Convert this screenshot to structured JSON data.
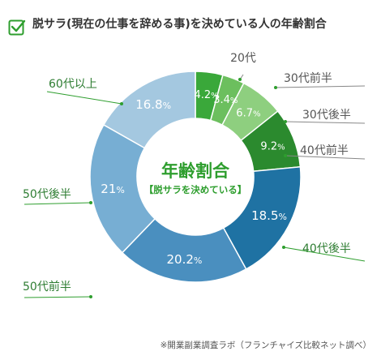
{
  "header": {
    "title": "脱サラ(現在の仕事を辞める事)を決めている人の年齢割合"
  },
  "center": {
    "title": "年齢割合",
    "subtitle": "【脱サラを決めている】"
  },
  "footnote": "※開業副業調査ラボ（フランチャイズ比較ネット調べ）",
  "colors": {
    "accent_green": "#2e9e2e",
    "dark_blue": "#1f6e9e",
    "leader_gray": "#888888"
  },
  "chart_data": {
    "type": "pie",
    "title": "年齢割合",
    "unit": "%",
    "slices": [
      {
        "label": "20代",
        "value": 4.2,
        "color": "#3aa83a"
      },
      {
        "label": "30代前半",
        "value": 3.4,
        "color": "#6cbf5e"
      },
      {
        "label": "30代後半",
        "value": 6.7,
        "color": "#8ecf7f"
      },
      {
        "label": "40代前半",
        "value": 9.2,
        "color": "#2b8a2e"
      },
      {
        "label": "40代後半",
        "value": 18.5,
        "color": "#1f72a3"
      },
      {
        "label": "50代前半",
        "value": 20.2,
        "color": "#4a8fbf"
      },
      {
        "label": "50代後半",
        "value": 21.0,
        "color": "#77aed3"
      },
      {
        "label": "60代以上",
        "value": 16.8,
        "color": "#a4c8e0"
      }
    ],
    "value_labels": [
      "4.2",
      "3.4",
      "6.7",
      "9.2",
      "18.5",
      "20.2",
      "21",
      "16.8"
    ]
  }
}
